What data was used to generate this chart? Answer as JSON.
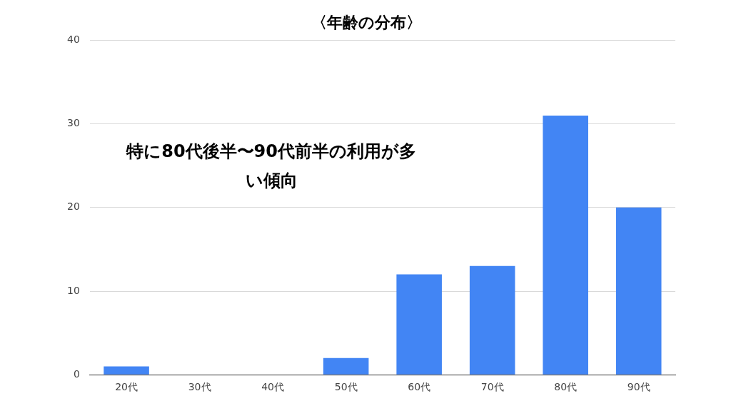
{
  "chart_data": {
    "type": "bar",
    "title": "〈年齢の分布〉",
    "categories": [
      "20代",
      "30代",
      "40代",
      "50代",
      "60代",
      "70代",
      "80代",
      "90代"
    ],
    "values": [
      1,
      0,
      0,
      2,
      12,
      13,
      31,
      20
    ],
    "color": "#4285f4",
    "ylim": [
      0,
      40
    ],
    "yticks": [
      0,
      10,
      20,
      30,
      40
    ],
    "grid": "y",
    "legend": false,
    "annotations": [
      "特に80代後半〜90代前半の利用が多い傾向"
    ]
  }
}
